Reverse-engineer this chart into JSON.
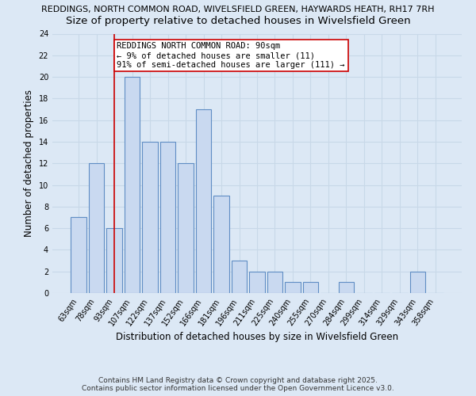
{
  "title_line1": "REDDINGS, NORTH COMMON ROAD, WIVELSFIELD GREEN, HAYWARDS HEATH, RH17 7RH",
  "title_line2": "Size of property relative to detached houses in Wivelsfield Green",
  "xlabel": "Distribution of detached houses by size in Wivelsfield Green",
  "ylabel": "Number of detached properties",
  "bar_labels": [
    "63sqm",
    "78sqm",
    "93sqm",
    "107sqm",
    "122sqm",
    "137sqm",
    "152sqm",
    "166sqm",
    "181sqm",
    "196sqm",
    "211sqm",
    "225sqm",
    "240sqm",
    "255sqm",
    "270sqm",
    "284sqm",
    "299sqm",
    "314sqm",
    "329sqm",
    "343sqm",
    "358sqm"
  ],
  "bar_values": [
    7,
    12,
    6,
    20,
    14,
    14,
    12,
    17,
    9,
    3,
    2,
    2,
    1,
    1,
    0,
    1,
    0,
    0,
    0,
    2,
    0
  ],
  "bar_color": "#c9d9f0",
  "bar_edgecolor": "#5f8dc4",
  "vline_x_index": 2,
  "vline_color": "#cc0000",
  "annotation_text": "REDDINGS NORTH COMMON ROAD: 90sqm\n← 9% of detached houses are smaller (11)\n91% of semi-detached houses are larger (111) →",
  "annotation_box_edgecolor": "#cc0000",
  "annotation_box_facecolor": "#ffffff",
  "ylim": [
    0,
    24
  ],
  "yticks": [
    0,
    2,
    4,
    6,
    8,
    10,
    12,
    14,
    16,
    18,
    20,
    22,
    24
  ],
  "grid_color": "#c8d8e8",
  "background_color": "#dce8f5",
  "plot_background": "#dce8f5",
  "footer_text": "Contains HM Land Registry data © Crown copyright and database right 2025.\nContains public sector information licensed under the Open Government Licence v3.0.",
  "title1_fontsize": 8.0,
  "title2_fontsize": 9.5,
  "xlabel_fontsize": 8.5,
  "ylabel_fontsize": 8.5,
  "tick_fontsize": 7.0,
  "annotation_fontsize": 7.5,
  "footer_fontsize": 6.5
}
